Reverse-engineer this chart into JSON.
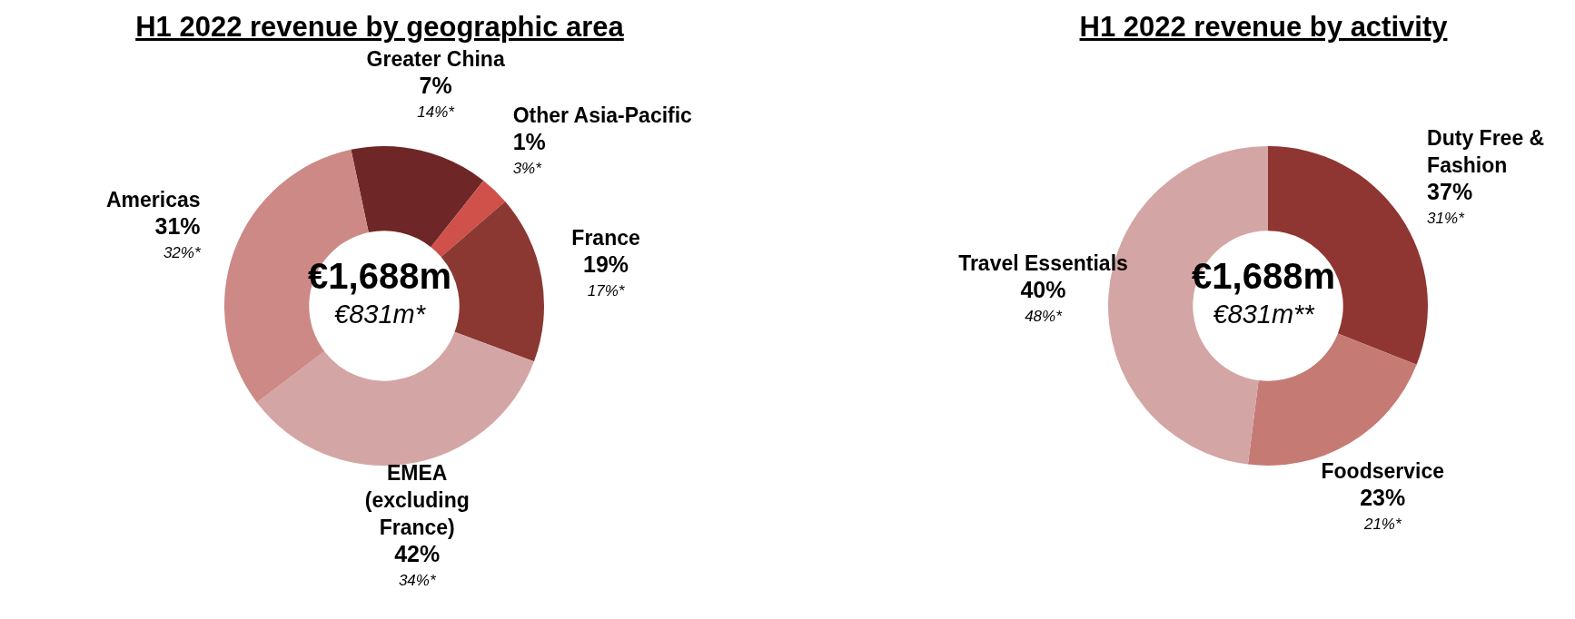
{
  "chart_data": [
    {
      "type": "donut",
      "title": "H1 2022 revenue by geographic area",
      "categories": [
        "Greater China",
        "Other Asia-Pacific",
        "France",
        "EMEA (excluding France)",
        "Americas"
      ],
      "values": [
        14,
        3,
        17,
        34,
        32
      ],
      "value_labels": [
        "14%*",
        "3%*",
        "17%*",
        "34%*",
        "32%*"
      ],
      "colors": [
        "#6e2726",
        "#d0504a",
        "#8b3833",
        "#d4a5a5",
        "#cd8985"
      ],
      "annotations": [
        {
          "text": "7%",
          "x": "Greater China"
        },
        {
          "text": "1%",
          "x": "Other Asia-Pacific"
        },
        {
          "text": "19%",
          "x": "France"
        },
        {
          "text": "42%",
          "x": "EMEA (excluding France)"
        },
        {
          "text": "31%",
          "x": "Americas"
        },
        "€1,688m",
        "€831m*"
      ]
    },
    {
      "type": "donut",
      "title": "H1 2022 revenue by activity",
      "categories": [
        "Duty Free & Fashion",
        "Foodservice",
        "Travel Essentials"
      ],
      "values": [
        31,
        21,
        48
      ],
      "value_labels": [
        "31%*",
        "21%*",
        "48%*"
      ],
      "colors": [
        "#8f3632",
        "#c67a74",
        "#d4a5a5"
      ],
      "annotations": [
        {
          "text": "37%",
          "x": "Duty Free & Fashion"
        },
        {
          "text": "23%",
          "x": "Foodservice"
        },
        {
          "text": "40%",
          "x": "Travel Essentials"
        },
        "€1,688m",
        "€831m**"
      ]
    }
  ]
}
